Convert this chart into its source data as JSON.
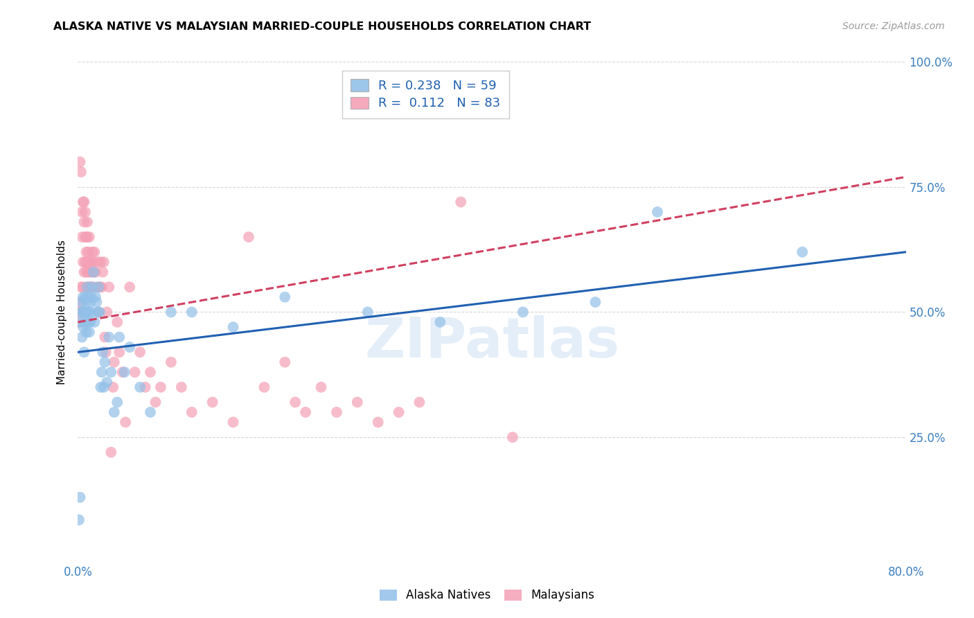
{
  "title": "ALASKA NATIVE VS MALAYSIAN MARRIED-COUPLE HOUSEHOLDS CORRELATION CHART",
  "source": "Source: ZipAtlas.com",
  "ylabel": "Married-couple Households",
  "xlim": [
    0.0,
    0.8
  ],
  "ylim": [
    0.0,
    1.0
  ],
  "xticks": [
    0.0,
    0.1,
    0.2,
    0.3,
    0.4,
    0.5,
    0.6,
    0.7,
    0.8
  ],
  "yticks": [
    0.0,
    0.25,
    0.5,
    0.75,
    1.0
  ],
  "yticklabels": [
    "",
    "25.0%",
    "50.0%",
    "75.0%",
    "100.0%"
  ],
  "alaska_color": "#92c0e8",
  "malaysian_color": "#f4a0b5",
  "alaska_line_color": "#2060b0",
  "malaysian_line_color": "#d04060",
  "watermark": "ZIPatlas",
  "alaska_line_start_y": 0.42,
  "alaska_line_end_y": 0.62,
  "malaysian_line_start_y": 0.48,
  "malaysian_line_end_y": 0.77,
  "alaska_x": [
    0.001,
    0.002,
    0.003,
    0.003,
    0.004,
    0.004,
    0.005,
    0.005,
    0.005,
    0.006,
    0.006,
    0.007,
    0.007,
    0.008,
    0.008,
    0.008,
    0.009,
    0.009,
    0.01,
    0.01,
    0.011,
    0.011,
    0.012,
    0.012,
    0.013,
    0.013,
    0.014,
    0.015,
    0.016,
    0.017,
    0.018,
    0.019,
    0.02,
    0.021,
    0.022,
    0.023,
    0.024,
    0.025,
    0.026,
    0.028,
    0.03,
    0.032,
    0.035,
    0.038,
    0.04,
    0.045,
    0.05,
    0.06,
    0.07,
    0.09,
    0.11,
    0.15,
    0.2,
    0.28,
    0.35,
    0.43,
    0.5,
    0.56,
    0.7
  ],
  "alaska_y": [
    0.085,
    0.13,
    0.5,
    0.48,
    0.52,
    0.45,
    0.5,
    0.53,
    0.47,
    0.5,
    0.42,
    0.53,
    0.48,
    0.52,
    0.5,
    0.46,
    0.5,
    0.55,
    0.48,
    0.53,
    0.5,
    0.46,
    0.52,
    0.48,
    0.53,
    0.5,
    0.55,
    0.58,
    0.48,
    0.53,
    0.52,
    0.5,
    0.55,
    0.5,
    0.35,
    0.38,
    0.42,
    0.35,
    0.4,
    0.36,
    0.45,
    0.38,
    0.3,
    0.32,
    0.45,
    0.38,
    0.43,
    0.35,
    0.3,
    0.5,
    0.5,
    0.47,
    0.53,
    0.5,
    0.48,
    0.5,
    0.52,
    0.7,
    0.62
  ],
  "malaysian_x": [
    0.001,
    0.001,
    0.002,
    0.002,
    0.003,
    0.003,
    0.004,
    0.004,
    0.004,
    0.005,
    0.005,
    0.005,
    0.006,
    0.006,
    0.006,
    0.007,
    0.007,
    0.007,
    0.008,
    0.008,
    0.008,
    0.009,
    0.009,
    0.009,
    0.009,
    0.01,
    0.01,
    0.01,
    0.011,
    0.011,
    0.012,
    0.012,
    0.013,
    0.013,
    0.014,
    0.014,
    0.015,
    0.015,
    0.016,
    0.017,
    0.018,
    0.019,
    0.02,
    0.021,
    0.022,
    0.023,
    0.024,
    0.025,
    0.026,
    0.027,
    0.028,
    0.03,
    0.032,
    0.034,
    0.035,
    0.038,
    0.04,
    0.043,
    0.046,
    0.05,
    0.055,
    0.06,
    0.065,
    0.07,
    0.075,
    0.08,
    0.09,
    0.1,
    0.11,
    0.13,
    0.15,
    0.165,
    0.18,
    0.2,
    0.21,
    0.22,
    0.235,
    0.25,
    0.27,
    0.29,
    0.31,
    0.33,
    0.37,
    0.42
  ],
  "malaysian_y": [
    0.5,
    0.48,
    0.52,
    0.8,
    0.78,
    0.55,
    0.5,
    0.7,
    0.65,
    0.72,
    0.6,
    0.55,
    0.68,
    0.72,
    0.58,
    0.65,
    0.7,
    0.6,
    0.58,
    0.65,
    0.62,
    0.55,
    0.6,
    0.65,
    0.68,
    0.58,
    0.62,
    0.55,
    0.6,
    0.65,
    0.58,
    0.55,
    0.6,
    0.55,
    0.62,
    0.55,
    0.6,
    0.58,
    0.62,
    0.58,
    0.55,
    0.6,
    0.5,
    0.55,
    0.6,
    0.55,
    0.58,
    0.6,
    0.45,
    0.42,
    0.5,
    0.55,
    0.22,
    0.35,
    0.4,
    0.48,
    0.42,
    0.38,
    0.28,
    0.55,
    0.38,
    0.42,
    0.35,
    0.38,
    0.32,
    0.35,
    0.4,
    0.35,
    0.3,
    0.32,
    0.28,
    0.65,
    0.35,
    0.4,
    0.32,
    0.3,
    0.35,
    0.3,
    0.32,
    0.28,
    0.3,
    0.32,
    0.72,
    0.25
  ]
}
